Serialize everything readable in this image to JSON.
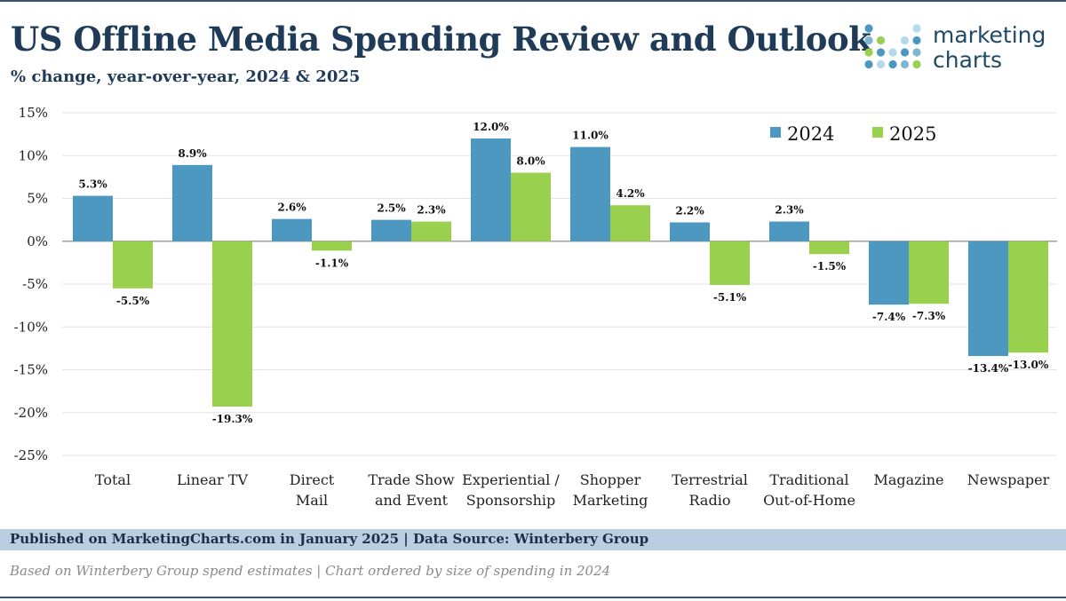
{
  "header": {
    "title": "US Offline Media Spending Review and Outlook",
    "subtitle": "% change, year-over-year, 2024 & 2025"
  },
  "logo": {
    "line1": "marketing",
    "line2": "charts"
  },
  "footer": {
    "published": "Published on MarketingCharts.com in January 2025 | Data Source: Winterbery Group",
    "note": "Based on Winterbery Group spend estimates | Chart ordered by size of spending in 2024"
  },
  "colors": {
    "series_2024": "#4d98c0",
    "series_2025": "#99d04d",
    "title": "#1f3b57",
    "footer_bar": "#b9cee0"
  },
  "chart_data": {
    "type": "bar",
    "categories": [
      [
        "Total"
      ],
      [
        "Linear TV"
      ],
      [
        "Direct",
        "Mail"
      ],
      [
        "Trade Show",
        "and Event"
      ],
      [
        "Experiential /",
        "Sponsorship"
      ],
      [
        "Shopper",
        "Marketing"
      ],
      [
        "Terrestrial",
        "Radio"
      ],
      [
        "Traditional",
        "Out-of-Home"
      ],
      [
        "Magazine"
      ],
      [
        "Newspaper"
      ]
    ],
    "series": [
      {
        "name": "2024",
        "color": "#4d98c0",
        "values": [
          5.3,
          8.9,
          2.6,
          2.5,
          12.0,
          11.0,
          2.2,
          2.3,
          -7.4,
          -13.4
        ],
        "labels": [
          "5.3%",
          "8.9%",
          "2.6%",
          "2.5%",
          "12.0%",
          "11.0%",
          "2.2%",
          "2.3%",
          "-7.4%",
          "-13.4%"
        ]
      },
      {
        "name": "2025",
        "color": "#99d04d",
        "values": [
          -5.5,
          -19.3,
          -1.1,
          2.3,
          8.0,
          4.2,
          -5.1,
          -1.5,
          -7.3,
          -13.0
        ],
        "labels": [
          "-5.5%",
          "-19.3%",
          "-1.1%",
          "2.3%",
          "8.0%",
          "4.2%",
          "-5.1%",
          "-1.5%",
          "-7.3%",
          "-13.0%"
        ]
      }
    ],
    "ylim": [
      -25,
      15
    ],
    "yticks": [
      15,
      10,
      5,
      0,
      -5,
      -10,
      -15,
      -20,
      -25
    ],
    "ytick_labels": [
      "15%",
      "10%",
      "5%",
      "0%",
      "-5%",
      "-10%",
      "-15%",
      "-20%",
      "-25%"
    ],
    "grid": true,
    "legend": "top-right"
  }
}
